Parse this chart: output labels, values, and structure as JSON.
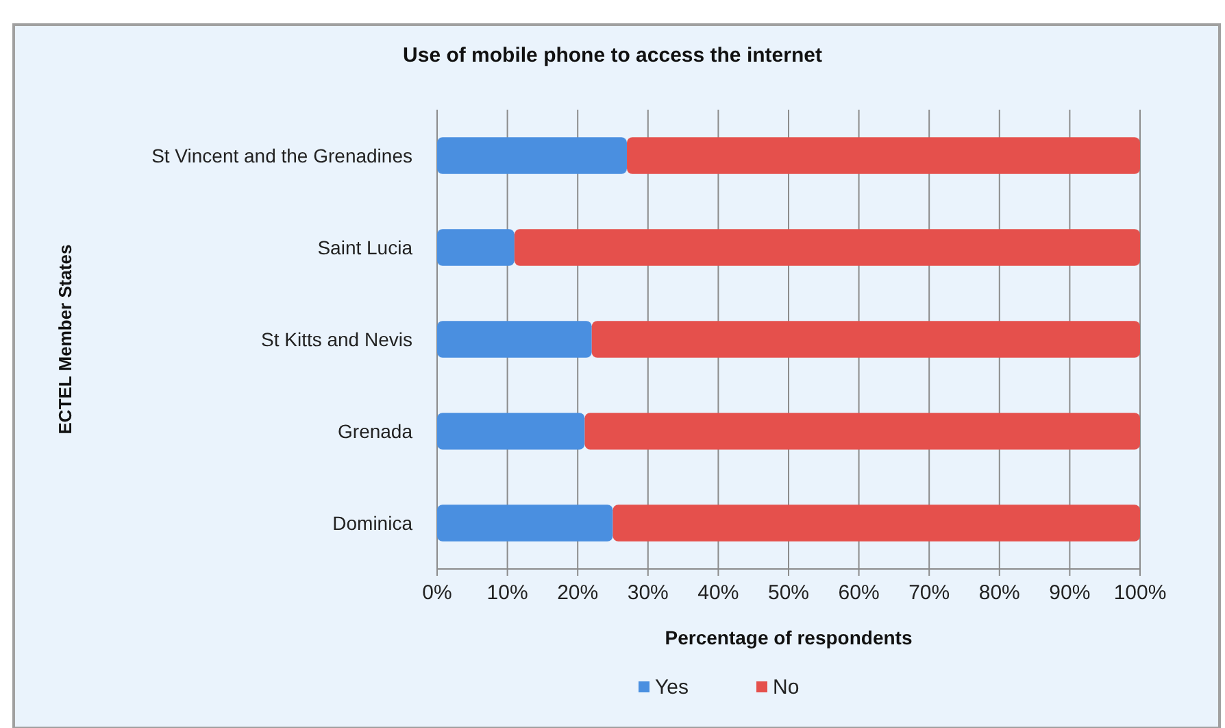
{
  "chart_data": {
    "type": "bar",
    "orientation": "horizontal",
    "stacked": true,
    "title": "Use of mobile phone to access the internet",
    "xlabel": "Percentage of respondents",
    "ylabel": "ECTEL Member States",
    "categories": [
      "St Vincent and the Grenadines",
      "Saint Lucia",
      "St Kitts and Nevis",
      "Grenada",
      "Dominica"
    ],
    "series": [
      {
        "name": "Yes",
        "color": "#4a8fe0",
        "values": [
          27,
          11,
          22,
          21,
          25
        ]
      },
      {
        "name": "No",
        "color": "#e5504c",
        "values": [
          73,
          89,
          78,
          79,
          75
        ]
      }
    ],
    "xlim": [
      0,
      100
    ],
    "xticks": [
      {
        "value": 0,
        "label": "0%"
      },
      {
        "value": 10,
        "label": "10%"
      },
      {
        "value": 20,
        "label": "20%"
      },
      {
        "value": 30,
        "label": "30%"
      },
      {
        "value": 40,
        "label": "40%"
      },
      {
        "value": 50,
        "label": "50%"
      },
      {
        "value": 60,
        "label": "60%"
      },
      {
        "value": 70,
        "label": "70%"
      },
      {
        "value": 80,
        "label": "80%"
      },
      {
        "value": 90,
        "label": "90%"
      },
      {
        "value": 100,
        "label": "100%"
      }
    ],
    "grid": "x",
    "legend": "bottom"
  }
}
